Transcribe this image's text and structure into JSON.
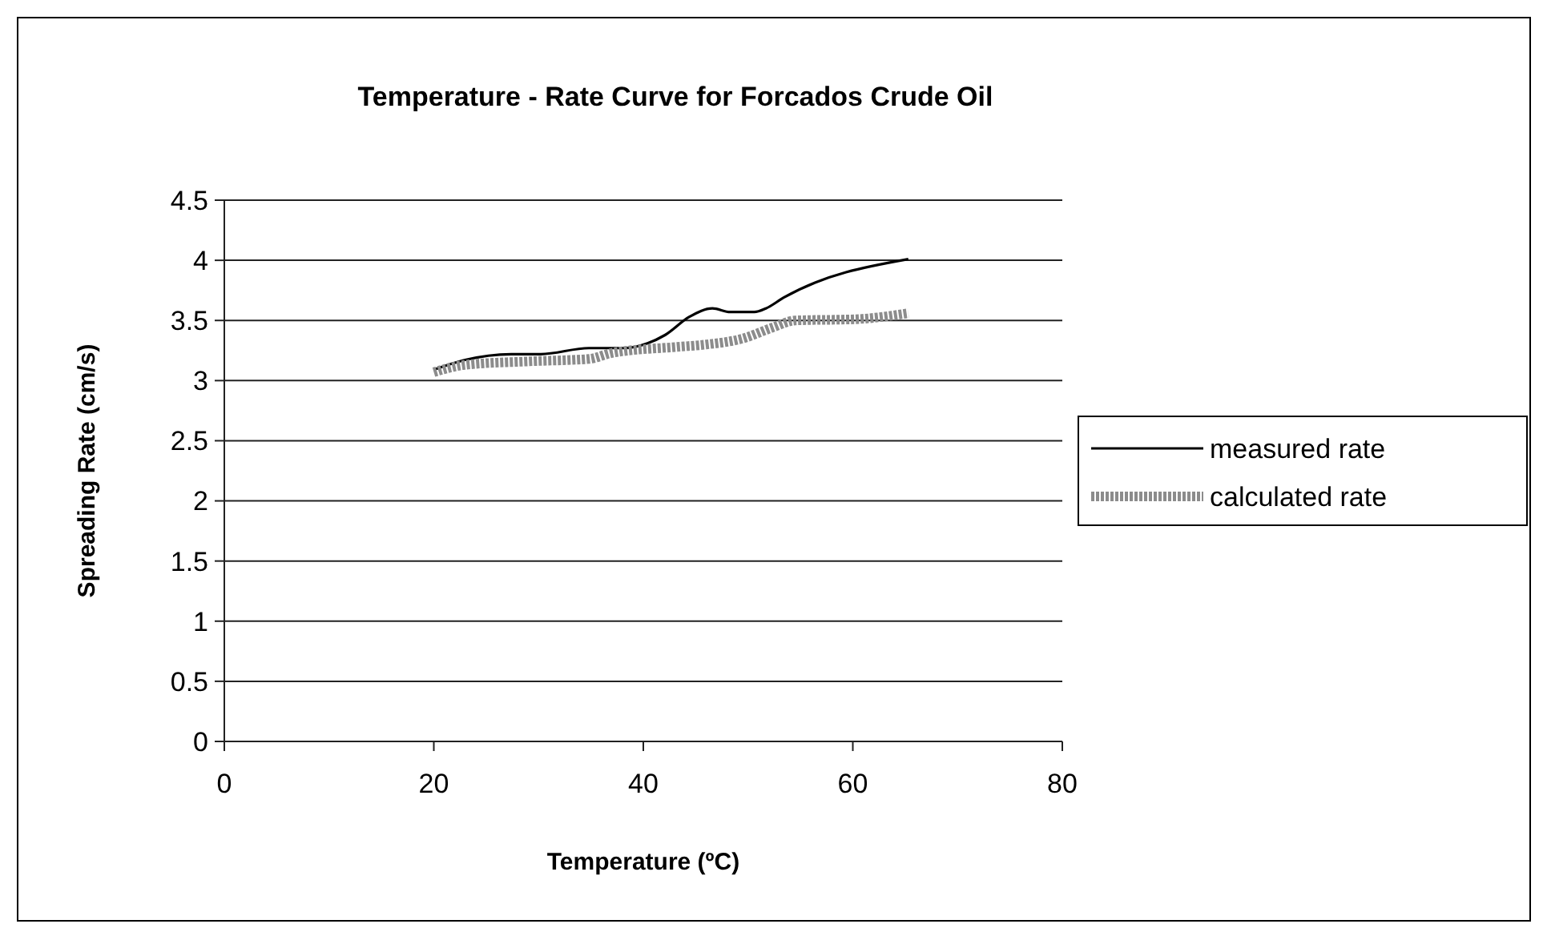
{
  "chart_data": {
    "type": "line",
    "title": "Temperature - Rate Curve for Forcados Crude Oil",
    "xlabel": "Temperature (ºC)",
    "ylabel": "Spreading Rate (cm/s)",
    "xlim": [
      0,
      80
    ],
    "xticks": [
      0,
      20,
      40,
      60,
      80
    ],
    "ylim": [
      0,
      4.5
    ],
    "yticks": [
      0,
      0.5,
      1,
      1.5,
      2,
      2.5,
      3,
      3.5,
      4,
      4.5
    ],
    "grid": "y",
    "legend": "right",
    "marker": "none",
    "series": [
      {
        "name": "measured rate",
        "color": "#000000",
        "line_style": "solid",
        "x": [
          20,
          22.9,
          27.4,
          30.2,
          34.8,
          38.2,
          40.4,
          42.1,
          44.4,
          46.6,
          48.3,
          50.6,
          51.7,
          53.4,
          65.3
        ],
        "values": [
          3.09,
          3.17,
          3.22,
          3.22,
          3.27,
          3.27,
          3.31,
          3.38,
          3.53,
          3.6,
          3.57,
          3.57,
          3.6,
          3.69,
          4.01
        ]
      },
      {
        "name": "calculated rate",
        "color": "#8c8c8c",
        "line_style": "dotted",
        "x": [
          20,
          22.9,
          29.1,
          34.8,
          37,
          43.2,
          46,
          49.5,
          52.3,
          54.5,
          60.2,
          65.3
        ],
        "values": [
          3.07,
          3.13,
          3.16,
          3.18,
          3.23,
          3.28,
          3.3,
          3.35,
          3.44,
          3.5,
          3.51,
          3.56
        ]
      }
    ]
  }
}
